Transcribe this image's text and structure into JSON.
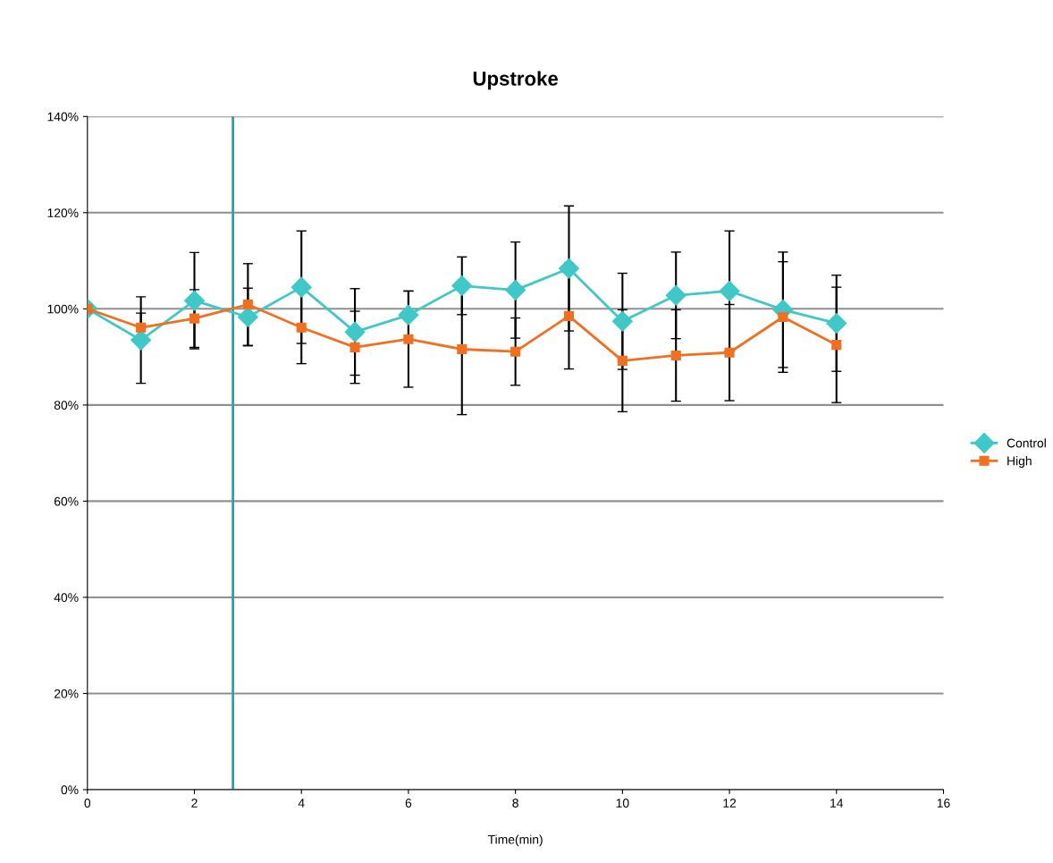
{
  "chart_data": {
    "type": "line",
    "title": "Upstroke",
    "xlabel": "Time(min)",
    "x": [
      0,
      1,
      2,
      3,
      4,
      5,
      6,
      7,
      8,
      9,
      10,
      11,
      12,
      13,
      14
    ],
    "series": [
      {
        "name": "Control",
        "color": "#40c8c8",
        "marker": "diamond",
        "values": [
          100,
          93.5,
          101.7,
          98.3,
          104.5,
          95.2,
          98.7,
          104.8,
          103.9,
          108.4,
          97.4,
          102.8,
          103.7,
          99.8,
          97.0
        ],
        "errors": [
          null,
          9,
          10,
          6,
          11.7,
          9,
          5,
          6,
          10,
          13,
          10,
          9,
          12.5,
          12,
          10
        ]
      },
      {
        "name": "High",
        "color": "#f07020",
        "marker": "square",
        "values": [
          100,
          96.1,
          98.0,
          100.9,
          96.1,
          92.0,
          93.7,
          91.6,
          91.1,
          98.5,
          89.2,
          90.3,
          90.9,
          98.3,
          92.5
        ],
        "errors": [
          null,
          3,
          6,
          8.5,
          7.5,
          7.5,
          10,
          13.6,
          7,
          11,
          10.6,
          9.5,
          10,
          11.5,
          12
        ]
      }
    ],
    "xlim": [
      0,
      16
    ],
    "xticks": [
      0,
      2,
      4,
      6,
      8,
      10,
      12,
      14,
      16
    ],
    "ylim": [
      0,
      140
    ],
    "yticks": [
      {
        "value": 0,
        "label": "0%"
      },
      {
        "value": 20,
        "label": "20%"
      },
      {
        "value": 40,
        "label": "40%"
      },
      {
        "value": 60,
        "label": "60%"
      },
      {
        "value": 80,
        "label": "80%"
      },
      {
        "value": 100,
        "label": "100%"
      },
      {
        "value": 120,
        "label": "120%"
      },
      {
        "value": 140,
        "label": "140%"
      }
    ],
    "grid": "y",
    "legend": "right",
    "ref_lines": [
      {
        "axis": "x",
        "value": 2.72,
        "color": "#30a0a8"
      }
    ]
  }
}
